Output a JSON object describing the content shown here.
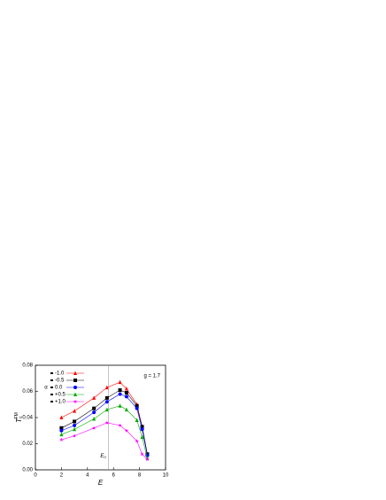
{
  "chart_data": {
    "type": "line",
    "xlabel": "E",
    "ylabel": {
      "base": "T",
      "sub": "c",
      "sup": "FM"
    },
    "legend_title": "α",
    "annotation": "g = 1.7",
    "marker_line": {
      "text": "E",
      "sub": "0",
      "x": 5.6
    },
    "x": [
      2,
      3,
      4.5,
      5.5,
      6.5,
      7,
      7.8,
      8.2,
      8.6
    ],
    "series": [
      {
        "name": "-1.0",
        "color": "#ff0000",
        "marker": "triangle",
        "values": [
          0.04,
          0.045,
          0.055,
          0.063,
          0.067,
          0.062,
          0.05,
          0.033,
          0.012
        ]
      },
      {
        "name": "-0.5",
        "color": "#000000",
        "marker": "square",
        "values": [
          0.032,
          0.037,
          0.047,
          0.055,
          0.061,
          0.059,
          0.049,
          0.033,
          0.012
        ]
      },
      {
        "name": "0.0",
        "color": "#0000ff",
        "marker": "circle",
        "values": [
          0.03,
          0.034,
          0.044,
          0.052,
          0.058,
          0.056,
          0.047,
          0.031,
          0.011
        ]
      },
      {
        "name": "+0.5",
        "color": "#00aa00",
        "marker": "triangle",
        "values": [
          0.027,
          0.031,
          0.039,
          0.046,
          0.049,
          0.046,
          0.038,
          0.025,
          0.009
        ]
      },
      {
        "name": "+1.0",
        "color": "#ff00ff",
        "marker": "star",
        "values": [
          0.023,
          0.026,
          0.032,
          0.036,
          0.034,
          0.03,
          0.022,
          0.012,
          0.008
        ]
      }
    ],
    "xlim": [
      0,
      10
    ],
    "xticks": [
      0,
      2,
      4,
      6,
      8,
      10
    ],
    "ylim": [
      0,
      0.08
    ],
    "yticks": [
      {
        "value": 0,
        "label": "0.00"
      },
      {
        "value": 0.02,
        "label": "0.02"
      },
      {
        "value": 0.04,
        "label": "0.04"
      },
      {
        "value": 0.06,
        "label": "0.06"
      },
      {
        "value": 0.08,
        "label": "0.08"
      }
    ]
  }
}
